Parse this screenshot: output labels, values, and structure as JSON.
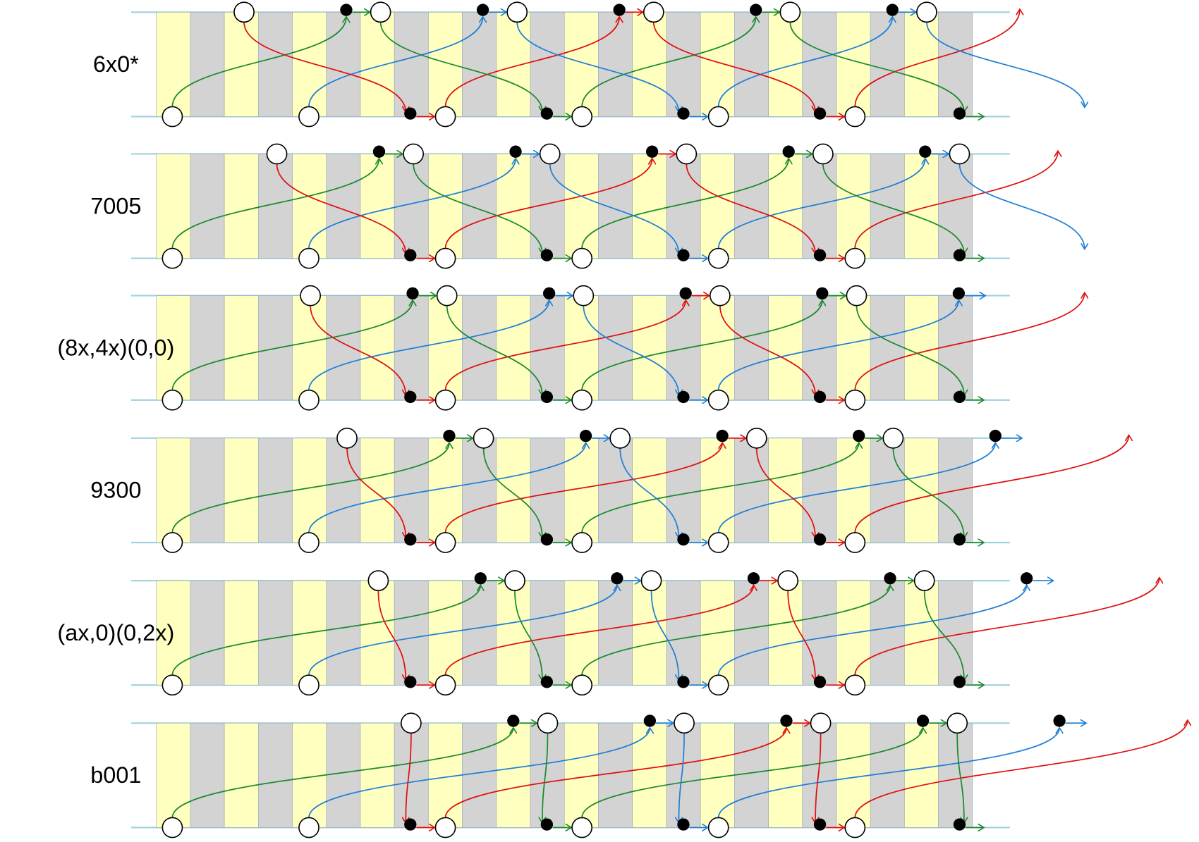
{
  "rows": [
    {
      "label": "6x0*"
    },
    {
      "label": "7005"
    },
    {
      "label": "(8x,4x)(0,0)"
    },
    {
      "label": "9300"
    },
    {
      "label": "(ax,0)(0,2x)"
    },
    {
      "label": "b001"
    }
  ]
}
